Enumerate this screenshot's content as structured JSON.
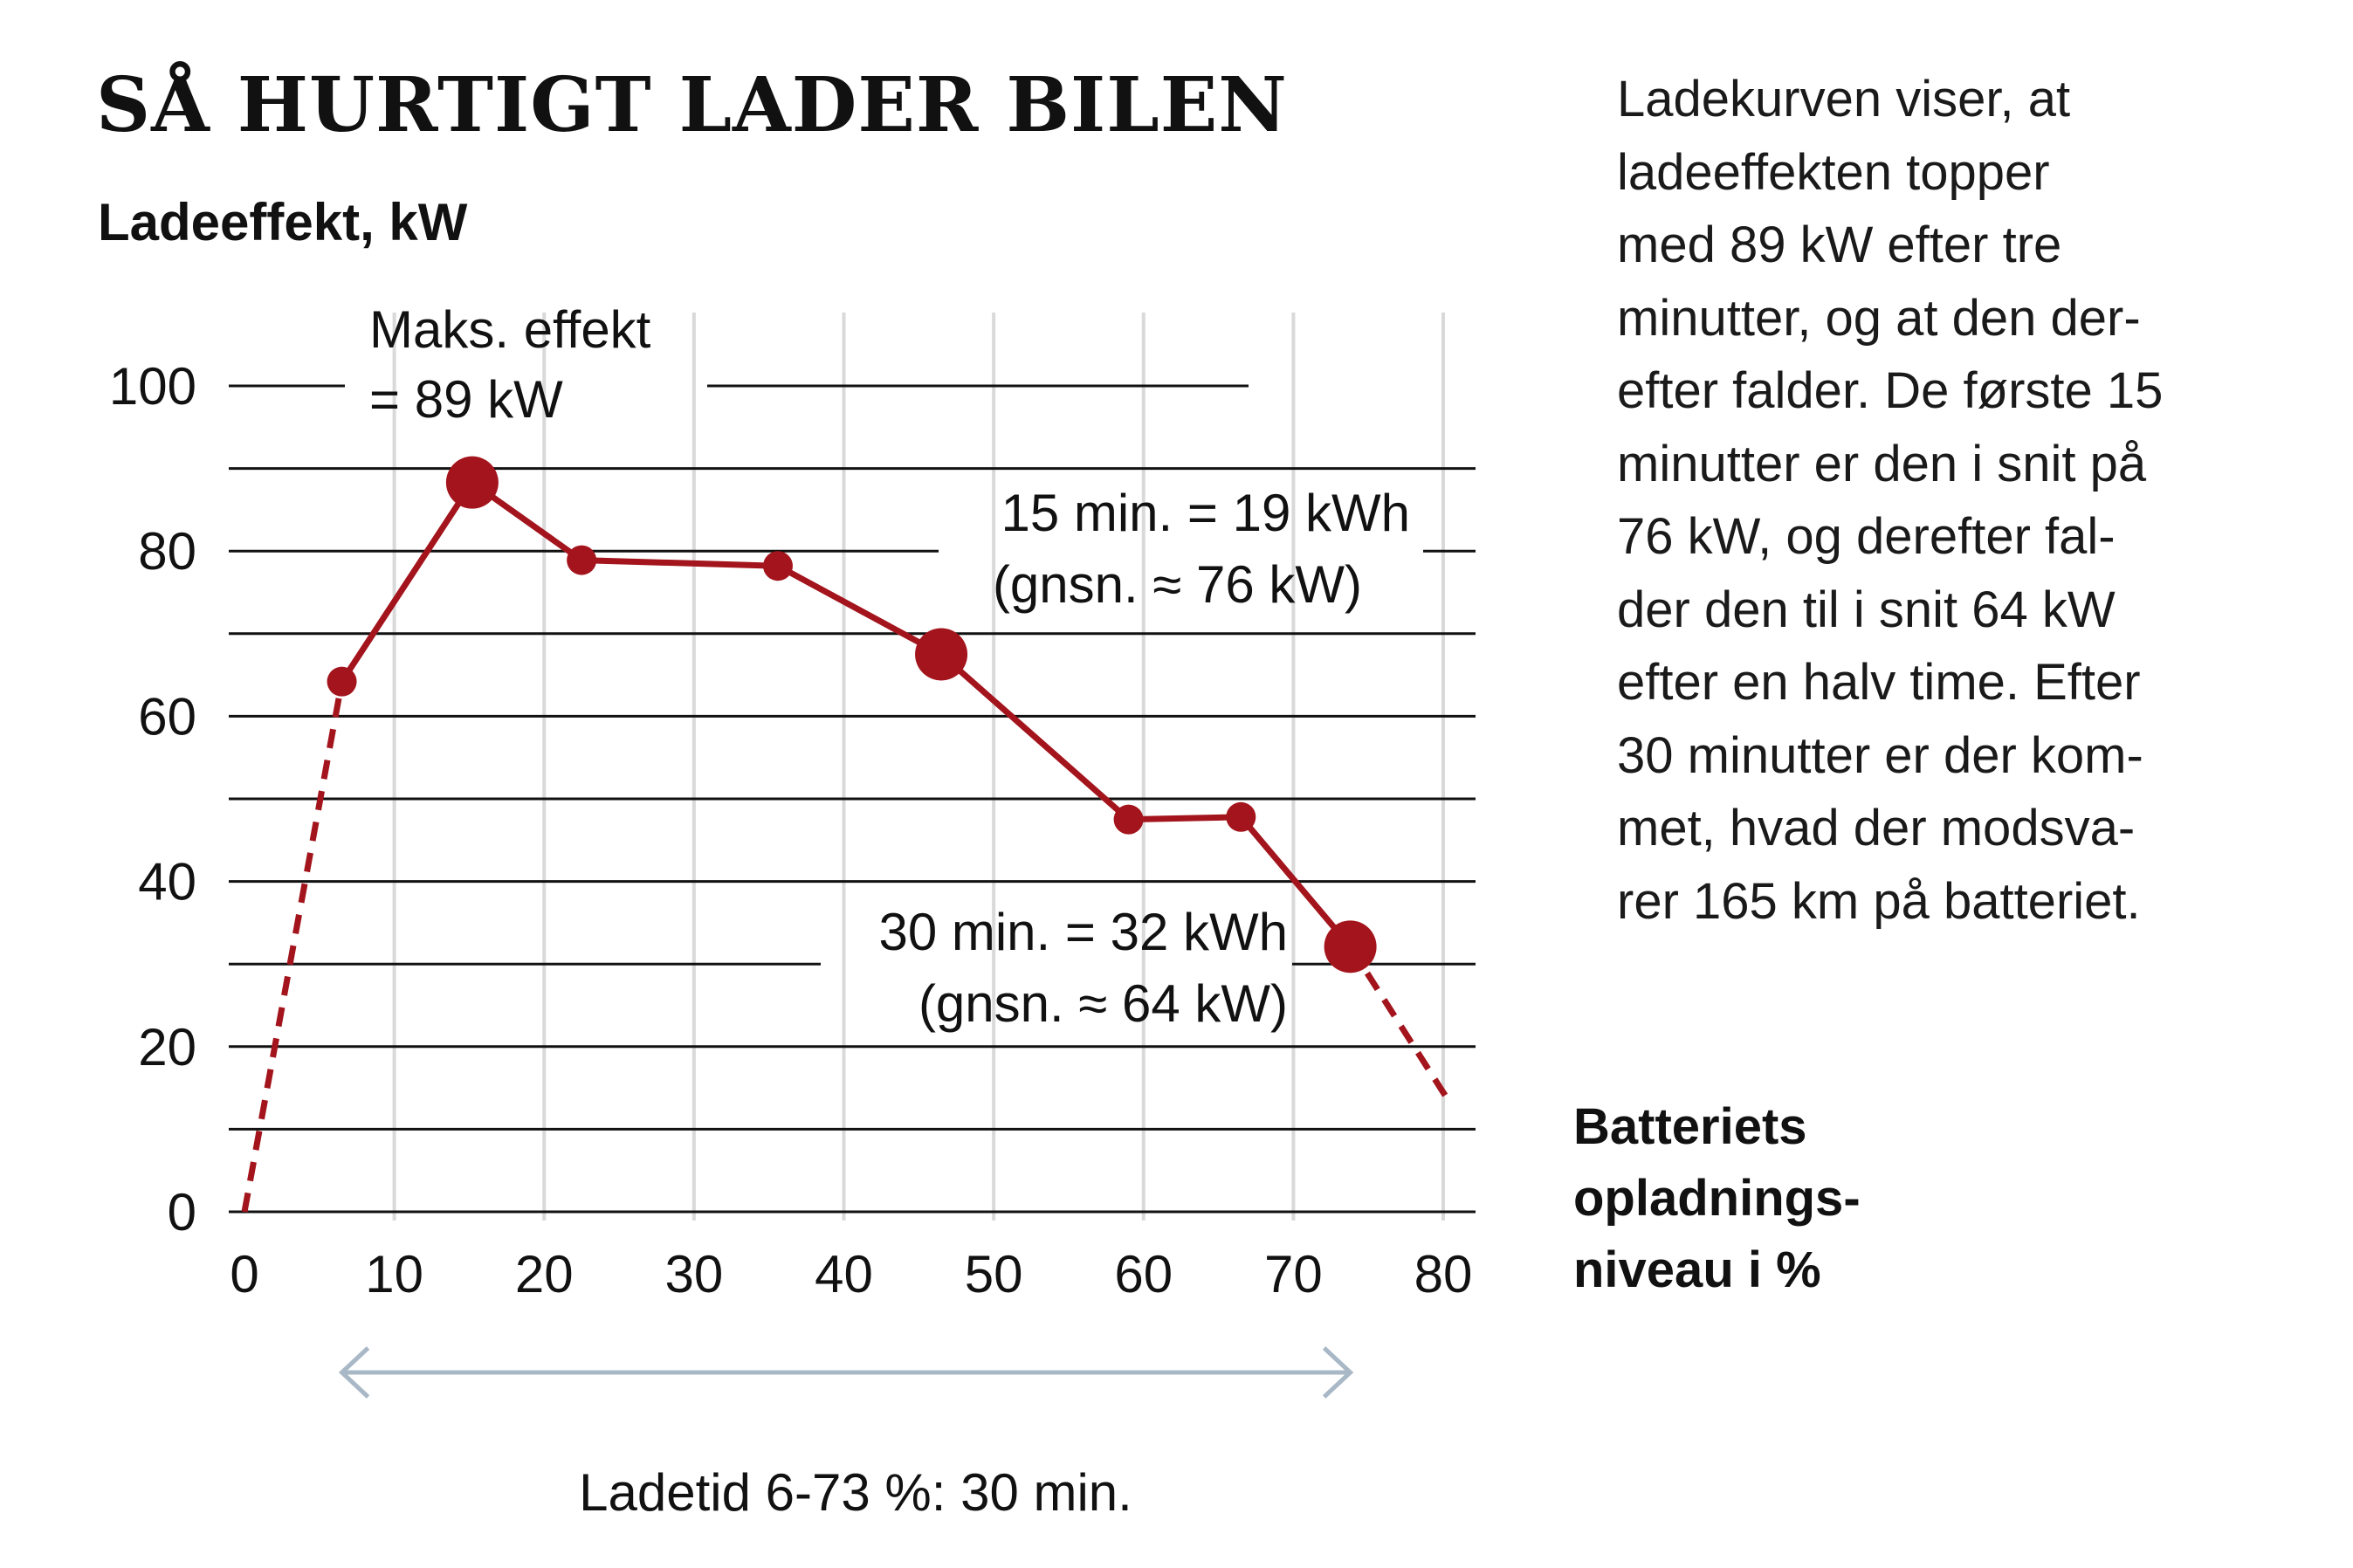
{
  "title": "SÅ HURTIGT LADER BILEN",
  "side_text_lines": [
    "Ladekurven viser, at",
    "ladeeffekten topper",
    "med 89 kW efter tre",
    "minutter, og at den der-",
    "efter falder. De første 15",
    "minutter er den i snit på",
    "76 kW, og derefter fal-",
    "der den til i snit 64 kW",
    "efter en halv time. Efter",
    "30 minutter er der kom-",
    "met, hvad der modsva-",
    "rer 165 km på batteriet."
  ],
  "footer": "Ladetid 6-73 %: 30 min.",
  "colors": {
    "line": "#a3141c",
    "grid": "#111111",
    "vgrid": "#d9d9d9",
    "arrow": "#a9b8c6"
  },
  "chart_data": {
    "type": "line",
    "ylabel": "Ladeeffekt, kW",
    "xlabel_lines": [
      "Batteriets",
      "opladnings-",
      "niveau i %"
    ],
    "xlim": [
      0,
      80
    ],
    "ylim": [
      0,
      100
    ],
    "xticks": [
      0,
      10,
      20,
      30,
      40,
      50,
      60,
      70,
      80
    ],
    "yticks": [
      0,
      20,
      40,
      60,
      80,
      100
    ],
    "grid": true,
    "series": [
      {
        "x": [
          6.5,
          15.2,
          22.5,
          35.6,
          46.5,
          59,
          66.5,
          73.8
        ],
        "y": [
          64.2,
          88.3,
          78.9,
          78.2,
          67.5,
          47.5,
          47.8,
          32.1
        ],
        "large_markers": [
          1,
          4,
          7
        ]
      }
    ],
    "extrapolation": [
      {
        "x": [
          0,
          6.5
        ],
        "y": [
          0,
          64.2
        ]
      },
      {
        "x": [
          73.8,
          80.3
        ],
        "y": [
          32.1,
          13.6
        ]
      }
    ],
    "annotations": [
      {
        "lines": [
          "Maks. effekt",
          "= 89 kW"
        ]
      },
      {
        "lines": [
          "15 min. = 19 kWh",
          "(gnsn. ≈ 76 kW)"
        ]
      },
      {
        "lines": [
          "30 min. = 32 kWh",
          "(gnsn. ≈ 64 kW)"
        ]
      }
    ],
    "range_arrow": {
      "from": 6.5,
      "to": 73.8
    }
  }
}
